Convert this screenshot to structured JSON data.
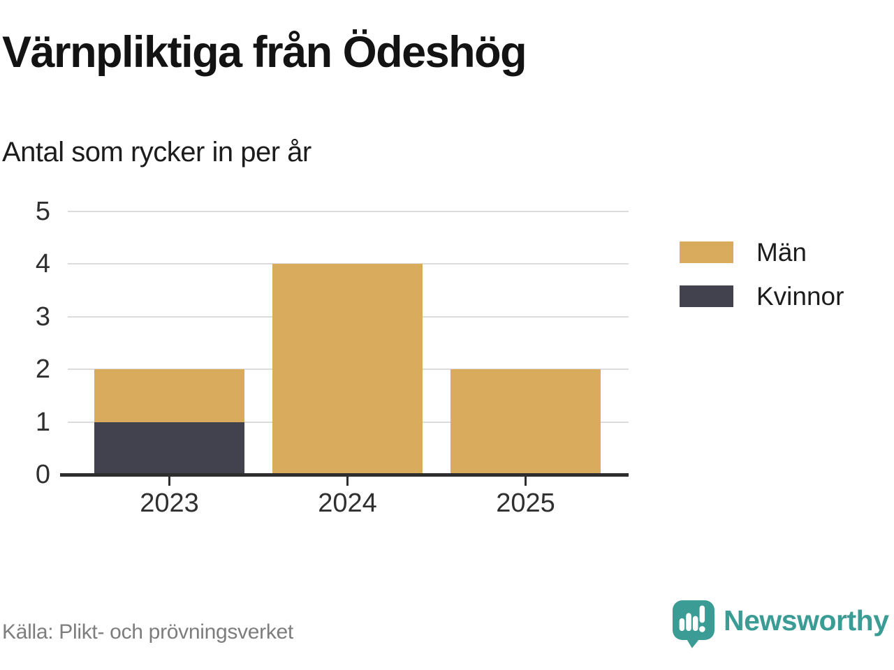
{
  "header": {
    "title": "Värnpliktiga från Ödeshög",
    "subtitle": "Antal som rycker in per år"
  },
  "chart_data": {
    "type": "bar",
    "stacked": true,
    "title": "Värnpliktiga från Ödeshög",
    "subtitle": "Antal som rycker in per år",
    "categories": [
      "2023",
      "2024",
      "2025"
    ],
    "series": [
      {
        "name": "Män",
        "color": "#D9AB5C",
        "values": [
          1,
          4,
          2
        ]
      },
      {
        "name": "Kvinnor",
        "color": "#42424F",
        "values": [
          1,
          0,
          0
        ]
      }
    ],
    "stack_order_bottom_to_top": [
      "Kvinnor",
      "Män"
    ],
    "stack_totals": [
      2,
      4,
      2
    ],
    "xlabel": "",
    "ylabel": "",
    "ylim": [
      0,
      5
    ],
    "yticks": [
      0,
      1,
      2,
      3,
      4,
      5
    ],
    "grid": "horizontal-only",
    "legend_position": "right"
  },
  "footer": {
    "source": "Källa: Plikt- och prövningsverket",
    "brand": "Newsworthy"
  },
  "colors": {
    "men_bar": "#D9AB5C",
    "women_bar": "#42424F",
    "brand_teal": "#3A9C94",
    "gridline": "#DCDCDC",
    "axis": "#2E2E2E",
    "axis_label": "#2F2F2F",
    "source_text": "#7D7D7D"
  }
}
